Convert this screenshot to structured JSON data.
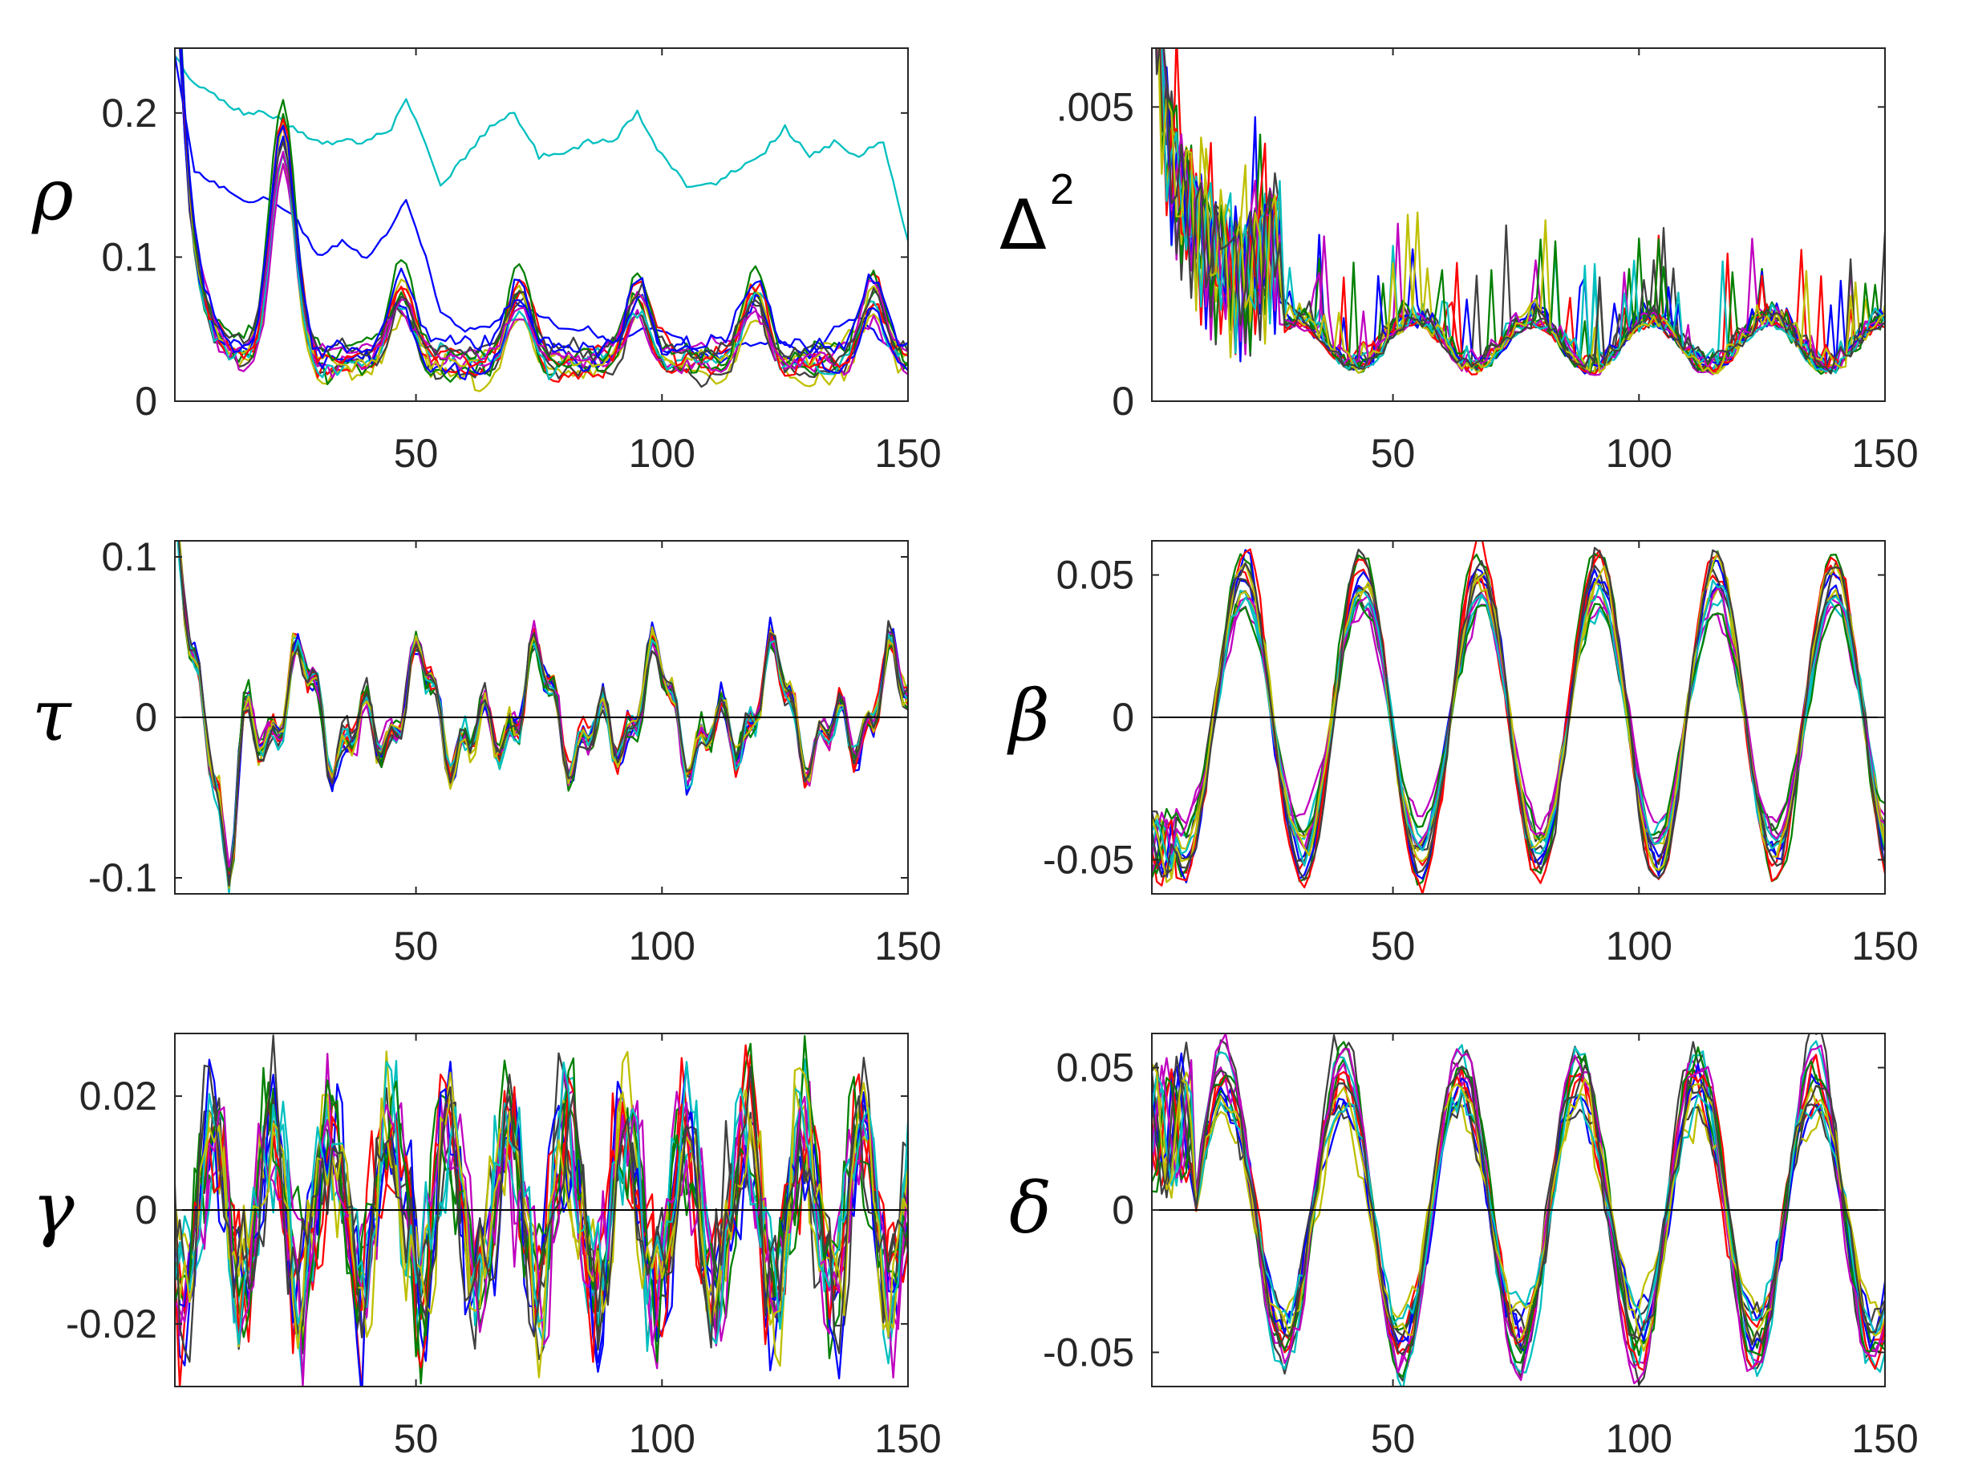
{
  "chart_data": [
    {
      "type": "line",
      "panel": "top-left",
      "ylabel": "ρ",
      "xlim": [
        1,
        150
      ],
      "ylim": [
        0,
        0.245
      ],
      "xticks": [
        50,
        100,
        150
      ],
      "xtick_labels": [
        "50",
        "100",
        "150"
      ],
      "yticks": [
        0,
        0.1,
        0.2
      ],
      "ytick_labels": [
        "0",
        "0.1",
        "0.2"
      ],
      "zero_line": false,
      "n_series": 15,
      "period": 24,
      "colors": [
        "#00bfbf",
        "#0000ff",
        "#bfbf00",
        "#404040",
        "#ff0000",
        "#008000",
        "#bf00bf",
        "#00bfbf",
        "#0000ff",
        "#bfbf00",
        "#ff0000",
        "#008000",
        "#bf00bf",
        "#404040",
        "#0000ff"
      ],
      "series": [
        {
          "name": "cyan (high)",
          "x": [
            1,
            5,
            10,
            15,
            20,
            25,
            30,
            35,
            40,
            45,
            48,
            52,
            55,
            60,
            65,
            70,
            75,
            80,
            85,
            90,
            95,
            100,
            105,
            110,
            115,
            120,
            125,
            130,
            135,
            140,
            145,
            150
          ],
          "values": [
            0.24,
            0.22,
            0.21,
            0.2,
            0.2,
            0.19,
            0.18,
            0.18,
            0.18,
            0.19,
            0.21,
            0.18,
            0.15,
            0.17,
            0.19,
            0.2,
            0.17,
            0.17,
            0.18,
            0.18,
            0.2,
            0.17,
            0.15,
            0.15,
            0.16,
            0.17,
            0.19,
            0.17,
            0.18,
            0.17,
            0.18,
            0.11
          ]
        },
        {
          "name": "blue (mid)",
          "x": [
            1,
            5,
            10,
            15,
            20,
            25,
            30,
            35,
            40,
            45,
            48,
            52,
            55,
            60,
            65,
            70,
            75,
            80,
            85,
            90,
            95,
            100,
            105,
            110,
            115,
            120,
            125,
            130,
            135,
            140,
            145,
            150
          ],
          "values": [
            0.24,
            0.16,
            0.15,
            0.14,
            0.14,
            0.13,
            0.1,
            0.11,
            0.1,
            0.12,
            0.14,
            0.1,
            0.06,
            0.05,
            0.05,
            0.07,
            0.06,
            0.05,
            0.05,
            0.04,
            0.05,
            0.05,
            0.04,
            0.03,
            0.04,
            0.04,
            0.04,
            0.03,
            0.05,
            0.06,
            0.04,
            0.04
          ]
        }
      ],
      "value_range_description_free": false
    },
    {
      "type": "line",
      "panel": "top-right",
      "ylabel": "Δ",
      "ylabel_superscript": "2",
      "xlim": [
        1,
        150
      ],
      "ylim": [
        0,
        0.006
      ],
      "xticks": [
        50,
        100,
        150
      ],
      "xtick_labels": [
        "50",
        "100",
        "150"
      ],
      "yticks": [
        0,
        0.005
      ],
      "ytick_labels": [
        "0",
        ".005"
      ],
      "zero_line": false,
      "n_series": 15,
      "colors": [
        "#404040",
        "#0000ff",
        "#ff0000",
        "#008000",
        "#bf00bf",
        "#00bfbf",
        "#bfbf00",
        "#404040",
        "#0000ff",
        "#ff0000",
        "#008000",
        "#bf00bf",
        "#00bfbf",
        "#bfbf00",
        "#404040"
      ]
    },
    {
      "type": "line",
      "panel": "middle-left",
      "ylabel": "τ",
      "xlim": [
        1,
        150
      ],
      "ylim": [
        -0.11,
        0.11
      ],
      "xticks": [
        50,
        100,
        150
      ],
      "xtick_labels": [
        "50",
        "100",
        "150"
      ],
      "yticks": [
        -0.1,
        0,
        0.1
      ],
      "ytick_labels": [
        "-0.1",
        "0",
        "0.1"
      ],
      "zero_line": true,
      "n_series": 15,
      "colors": [
        "#404040",
        "#0000ff",
        "#ff0000",
        "#008000",
        "#bf00bf",
        "#00bfbf",
        "#bfbf00",
        "#404040",
        "#0000ff",
        "#ff0000",
        "#008000",
        "#bf00bf",
        "#00bfbf",
        "#bfbf00",
        "#404040"
      ]
    },
    {
      "type": "line",
      "panel": "middle-right",
      "ylabel": "β",
      "xlim": [
        1,
        150
      ],
      "ylim": [
        -0.062,
        0.062
      ],
      "xticks": [
        50,
        100,
        150
      ],
      "xtick_labels": [
        "50",
        "100",
        "150"
      ],
      "yticks": [
        -0.05,
        0,
        0.05
      ],
      "ytick_labels": [
        "-0.05",
        "0",
        "0.05"
      ],
      "zero_line": true,
      "n_series": 15,
      "period": 24,
      "colors": [
        "#404040",
        "#0000ff",
        "#ff0000",
        "#008000",
        "#bf00bf",
        "#00bfbf",
        "#bfbf00",
        "#404040",
        "#0000ff",
        "#ff0000",
        "#008000",
        "#bf00bf",
        "#00bfbf",
        "#bfbf00",
        "#404040"
      ]
    },
    {
      "type": "line",
      "panel": "bottom-left",
      "ylabel": "γ",
      "xlim": [
        1,
        150
      ],
      "ylim": [
        -0.031,
        0.031
      ],
      "xticks": [
        50,
        100,
        150
      ],
      "xtick_labels": [
        "50",
        "100",
        "150"
      ],
      "yticks": [
        -0.02,
        0,
        0.02
      ],
      "ytick_labels": [
        "-0.02",
        "0",
        "0.02"
      ],
      "zero_line": true,
      "n_series": 15,
      "colors": [
        "#404040",
        "#0000ff",
        "#ff0000",
        "#008000",
        "#bf00bf",
        "#00bfbf",
        "#bfbf00",
        "#404040",
        "#0000ff",
        "#ff0000",
        "#008000",
        "#bf00bf",
        "#00bfbf",
        "#bfbf00",
        "#404040"
      ]
    },
    {
      "type": "line",
      "panel": "bottom-right",
      "ylabel": "δ",
      "xlim": [
        1,
        150
      ],
      "ylim": [
        -0.062,
        0.062
      ],
      "xticks": [
        50,
        100,
        150
      ],
      "xtick_labels": [
        "50",
        "100",
        "150"
      ],
      "yticks": [
        -0.05,
        0,
        0.05
      ],
      "ytick_labels": [
        "-0.05",
        "0",
        "0.05"
      ],
      "zero_line": true,
      "n_series": 15,
      "period": 24,
      "colors": [
        "#404040",
        "#0000ff",
        "#ff0000",
        "#008000",
        "#bf00bf",
        "#00bfbf",
        "#bfbf00",
        "#404040",
        "#0000ff",
        "#ff0000",
        "#008000",
        "#bf00bf",
        "#00bfbf",
        "#bfbf00",
        "#404040"
      ]
    }
  ]
}
